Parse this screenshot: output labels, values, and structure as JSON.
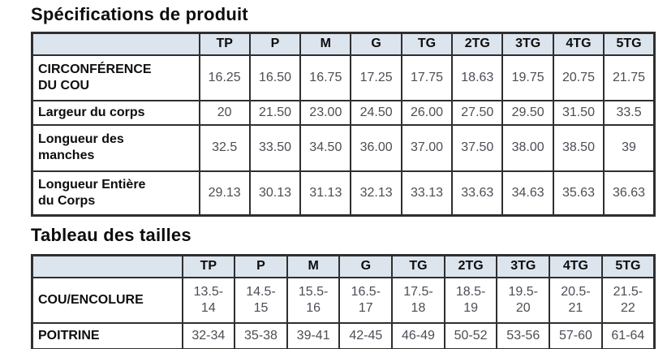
{
  "colors": {
    "header_bg": "#dce4ee",
    "border": "#2f2f2f",
    "label_text": "#0d0d0d",
    "value_text": "#4a4e55",
    "page_bg": "#ffffff"
  },
  "sections": [
    {
      "title": "Spécifications de produit",
      "columns": [
        "",
        "TP",
        "P",
        "M",
        "G",
        "TG",
        "2TG",
        "3TG",
        "4TG",
        "5TG"
      ],
      "rows": [
        {
          "label": "CIRCONFÉRENCE\nDU COU",
          "values": [
            "16.25",
            "16.50",
            "16.75",
            "17.25",
            "17.75",
            "18.63",
            "19.75",
            "20.75",
            "21.75"
          ]
        },
        {
          "label": "Largeur du corps",
          "values": [
            "20",
            "21.50",
            "23.00",
            "24.50",
            "26.00",
            "27.50",
            "29.50",
            "31.50",
            "33.5"
          ]
        },
        {
          "label": "Longueur des\nmanches",
          "values": [
            "32.5",
            "33.50",
            "34.50",
            "36.00",
            "37.00",
            "37.50",
            "38.00",
            "38.50",
            "39"
          ]
        },
        {
          "label": "Longueur Entière\ndu Corps",
          "values": [
            "29.13",
            "30.13",
            "31.13",
            "32.13",
            "33.13",
            "33.63",
            "34.63",
            "35.63",
            "36.63"
          ]
        }
      ]
    },
    {
      "title": "Tableau des tailles",
      "columns": [
        "",
        "TP",
        "P",
        "M",
        "G",
        "TG",
        "2TG",
        "3TG",
        "4TG",
        "5TG"
      ],
      "rows": [
        {
          "label": "COU/ENCOLURE",
          "values": [
            "13.5-\n14",
            "14.5-\n15",
            "15.5-\n16",
            "16.5-\n17",
            "17.5-\n18",
            "18.5-\n19",
            "19.5-\n20",
            "20.5-\n21",
            "21.5-\n22"
          ]
        },
        {
          "label": "POITRINE",
          "values": [
            "32-34",
            "35-38",
            "39-41",
            "42-45",
            "46-49",
            "50-52",
            "53-56",
            "57-60",
            "61-64"
          ]
        }
      ]
    }
  ]
}
